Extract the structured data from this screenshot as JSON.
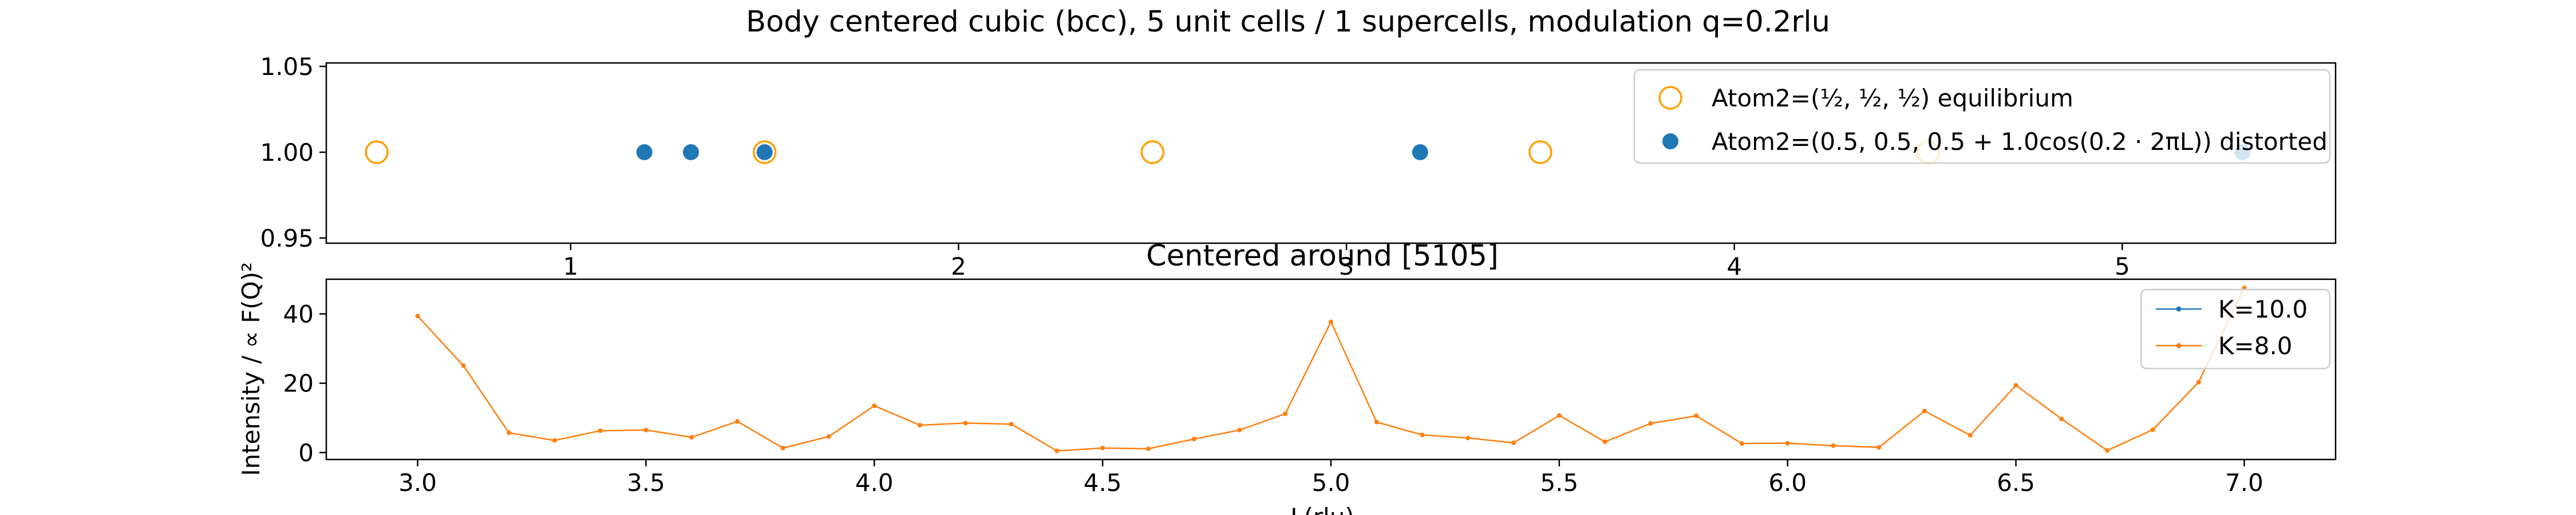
{
  "figure": {
    "title": "Body centered cubic (bcc), 5 unit cells / 1 supercells, modulation q=0.2rlu"
  },
  "colors": {
    "equilibrium": "#ff9f00",
    "distorted": "#1f77b4",
    "series_k10": "#1f77b4",
    "series_k8": "#ff7f0e",
    "axes": "#000000",
    "legend_border": "#cccccc"
  },
  "chart_data": [
    {
      "type": "scatter",
      "title": "",
      "xlabel": "",
      "ylabel": "",
      "xlim": [
        0.37,
        5.55
      ],
      "ylim": [
        0.947,
        1.052
      ],
      "xticks": [
        1,
        2,
        3,
        4,
        5
      ],
      "xtick_labels": [
        "1",
        "2",
        "3",
        "4",
        "5"
      ],
      "yticks": [
        0.95,
        1.0,
        1.05
      ],
      "ytick_labels": [
        "0.95",
        "1.00",
        "1.05"
      ],
      "grid": false,
      "legend_position": "upper-right",
      "series": [
        {
          "name": "Atom2=(½, ½, ½) equilibrium",
          "marker": "open-circle",
          "x": [
            0.5,
            1.5,
            2.5,
            3.5,
            4.5
          ],
          "y": [
            1.0,
            1.0,
            1.0,
            1.0,
            1.0
          ]
        },
        {
          "name": "Atom2=(0.5, 0.5, 0.5 + 1.0cos(0.2 · 2πL)) distorted",
          "marker": "filled-circle",
          "x": [
            1.19,
            1.31,
            1.5,
            3.19,
            5.31
          ],
          "y": [
            1.0,
            1.0,
            1.0,
            1.0,
            1.0
          ]
        }
      ]
    },
    {
      "type": "line",
      "title": "Centered around [5105]",
      "xlabel": "L(rlu)",
      "ylabel": "Intensity / ∝ F(Q)²",
      "xlim": [
        2.8,
        7.2
      ],
      "ylim": [
        -2,
        50
      ],
      "xticks": [
        3.0,
        3.5,
        4.0,
        4.5,
        5.0,
        5.5,
        6.0,
        6.5,
        7.0
      ],
      "xtick_labels": [
        "3.0",
        "3.5",
        "4.0",
        "4.5",
        "5.0",
        "5.5",
        "6.0",
        "6.5",
        "7.0"
      ],
      "yticks": [
        0,
        20,
        40
      ],
      "ytick_labels": [
        "0",
        "20",
        "40"
      ],
      "grid": false,
      "legend_position": "upper-right",
      "series": [
        {
          "name": "K=10.0",
          "x": [],
          "values": []
        },
        {
          "name": "K=8.0",
          "x": [
            3.0,
            3.1,
            3.2,
            3.3,
            3.4,
            3.5,
            3.6,
            3.7,
            3.8,
            3.9,
            4.0,
            4.1,
            4.2,
            4.3,
            4.4,
            4.5,
            4.6,
            4.7,
            4.8,
            4.9,
            5.0,
            5.1,
            5.2,
            5.3,
            5.4,
            5.5,
            5.6,
            5.7,
            5.8,
            5.9,
            6.0,
            6.1,
            6.2,
            6.3,
            6.4,
            6.5,
            6.6,
            6.7,
            6.8,
            6.9,
            7.0
          ],
          "values": [
            39.4,
            25.1,
            5.7,
            3.5,
            6.3,
            6.5,
            4.4,
            9.0,
            1.3,
            4.6,
            13.5,
            7.9,
            8.5,
            8.2,
            0.5,
            1.3,
            1.1,
            3.9,
            6.5,
            11.2,
            37.7,
            8.8,
            5.1,
            4.2,
            2.8,
            10.7,
            3.1,
            8.4,
            10.6,
            2.6,
            2.7,
            2.0,
            1.5,
            12.0,
            5.0,
            19.4,
            9.7,
            0.6,
            6.6,
            20.3,
            47.5
          ]
        }
      ]
    }
  ]
}
